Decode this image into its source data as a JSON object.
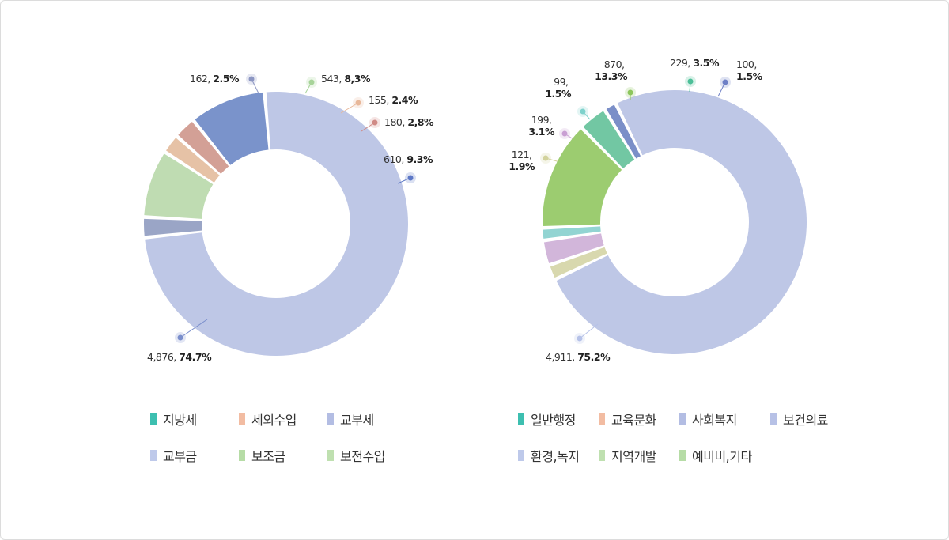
{
  "chart_data": [
    {
      "type": "pie",
      "slices": [
        {
          "value": 4876,
          "percent": "74.7%",
          "value_text": "4,876,",
          "percent_text": "74.7%",
          "color": "#bec7e6",
          "marker": "#7b8fcc"
        },
        {
          "value": 162,
          "percent": "2.5%",
          "value_text": "162,",
          "percent_text": "2.5%",
          "color": "#9aa5c6",
          "marker": "#8c96c2"
        },
        {
          "value": 543,
          "percent": "8.3%",
          "value_text": "543,",
          "percent_text": "8,3%",
          "color": "#bfdcb2",
          "marker": "#a8d49a"
        },
        {
          "value": 155,
          "percent": "2.4%",
          "value_text": "155,",
          "percent_text": "2.4%",
          "color": "#e6c2a6",
          "marker": "#e8b89a"
        },
        {
          "value": 180,
          "percent": "2.8%",
          "value_text": "180,",
          "percent_text": "2,8%",
          "color": "#d3a096",
          "marker": "#d08a86"
        },
        {
          "value": 610,
          "percent": "9.3%",
          "value_text": "610,",
          "percent_text": "9.3%",
          "color": "#7a93cb",
          "marker": "#5d78c6"
        }
      ],
      "legend": [
        {
          "label": "지방세",
          "color": "#3dbfb0"
        },
        {
          "label": "세외수입",
          "color": "#f2bca2"
        },
        {
          "label": "교부세",
          "color": "#b3bde3"
        },
        {
          "label": "교부금",
          "color": "#bec9ea"
        },
        {
          "label": "보조금",
          "color": "#b6dca6"
        },
        {
          "label": "보전수입",
          "color": "#bfe0b0"
        }
      ]
    },
    {
      "type": "pie",
      "slices": [
        {
          "value": 4911,
          "percent": "75.2%",
          "value_text": "4,911,",
          "percent_text": "75.2%",
          "color": "#bec7e6",
          "marker": "#b6c2e8"
        },
        {
          "value": 121,
          "percent": "1.9%",
          "value_text": "121,",
          "percent_text": "1.9%",
          "color": "#d8d8ae",
          "marker": "#d2d29c"
        },
        {
          "value": 199,
          "percent": "3.1%",
          "value_text": "199,",
          "percent_text": "3.1%",
          "color": "#d2b6da",
          "marker": "#c99fd3"
        },
        {
          "value": 99,
          "percent": "1.5%",
          "value_text": "99,",
          "percent_text": "1.5%",
          "color": "#92d4d2",
          "marker": "#7ed2cc"
        },
        {
          "value": 870,
          "percent": "13.3%",
          "value_text": "870,",
          "percent_text": "13.3%",
          "color": "#9ccc70",
          "marker": "#8dc65c"
        },
        {
          "value": 229,
          "percent": "3.5%",
          "value_text": "229,",
          "percent_text": "3.5%",
          "color": "#72c7a3",
          "marker": "#4cbf98"
        },
        {
          "value": 100,
          "percent": "1.5%",
          "value_text": "100,",
          "percent_text": "1.5%",
          "color": "#7b8fc8",
          "marker": "#6e80c6"
        }
      ],
      "legend": [
        {
          "label": "일반행정",
          "color": "#3dbfb0"
        },
        {
          "label": "교육문화",
          "color": "#f2bca2"
        },
        {
          "label": "사회복지",
          "color": "#b3bde3"
        },
        {
          "label": "보건의료",
          "color": "#b7c1e6"
        },
        {
          "label": "환경,녹지",
          "color": "#bec9ea"
        },
        {
          "label": "지역개발",
          "color": "#bfe0b0"
        },
        {
          "label": "예비비,기타",
          "color": "#b6dca6"
        }
      ]
    }
  ]
}
